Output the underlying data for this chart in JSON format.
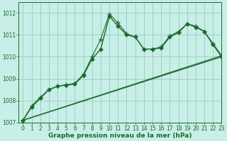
{
  "title": "",
  "xlabel": "Graphe pression niveau de la mer (hPa)",
  "ylabel": "",
  "background_color": "#c8eee8",
  "plot_bg_color": "#c8eee8",
  "grid_color": "#99ccbb",
  "line_color": "#1a6b2a",
  "ylim": [
    1007,
    1012.5
  ],
  "xlim": [
    -0.5,
    23
  ],
  "yticks": [
    1007,
    1008,
    1009,
    1010,
    1011,
    1012
  ],
  "xticks": [
    0,
    1,
    2,
    3,
    4,
    5,
    6,
    7,
    8,
    9,
    10,
    11,
    12,
    13,
    14,
    15,
    16,
    17,
    18,
    19,
    20,
    21,
    22,
    23
  ],
  "series": [
    {
      "x": [
        0,
        1,
        2,
        3,
        4,
        5,
        6,
        7,
        8,
        9,
        10,
        11,
        12,
        13,
        14,
        15,
        16,
        17,
        18,
        19,
        20,
        21,
        22,
        23
      ],
      "y": [
        1007.1,
        1007.7,
        1008.1,
        1008.5,
        1008.65,
        1008.7,
        1008.75,
        1009.15,
        1009.9,
        1010.35,
        1011.85,
        1011.4,
        1011.0,
        1010.9,
        1010.35,
        1010.35,
        1010.4,
        1010.9,
        1011.1,
        1011.5,
        1011.35,
        1011.15,
        1010.55,
        1010.0
      ],
      "style": "-",
      "marker": "D",
      "markersize": 2.5,
      "linewidth": 1.0
    },
    {
      "x": [
        0,
        1,
        2,
        3,
        4,
        5,
        6,
        7,
        8,
        9,
        10,
        11,
        12,
        13,
        14,
        15,
        16,
        17,
        18,
        19,
        20,
        21,
        22,
        23
      ],
      "y": [
        1007.1,
        1007.75,
        1008.15,
        1008.5,
        1008.65,
        1008.72,
        1008.78,
        1009.2,
        1010.0,
        1010.8,
        1011.95,
        1011.55,
        1011.05,
        1010.9,
        1010.35,
        1010.35,
        1010.45,
        1010.95,
        1011.15,
        1011.5,
        1011.4,
        1011.15,
        1010.6,
        1010.05
      ],
      "style": "-",
      "marker": "+",
      "markersize": 4,
      "linewidth": 0.8
    },
    {
      "x": [
        0,
        23
      ],
      "y": [
        1007.1,
        1010.0
      ],
      "style": "-",
      "marker": null,
      "linewidth": 1.0
    },
    {
      "x": [
        0,
        23
      ],
      "y": [
        1007.1,
        1010.05
      ],
      "style": "-",
      "marker": null,
      "linewidth": 0.8
    }
  ],
  "tick_fontsize": 5.5,
  "label_fontsize": 6.5,
  "tick_color": "#1a6b2a",
  "label_color": "#1a6b2a"
}
